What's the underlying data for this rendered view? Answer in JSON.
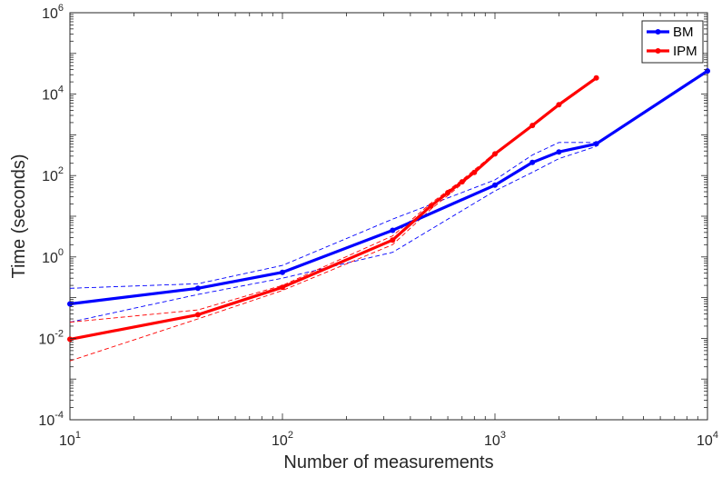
{
  "chart_data": {
    "type": "line",
    "xlabel": "Number of measurements",
    "ylabel": "Time (seconds)",
    "xscale": "log",
    "yscale": "log",
    "xlim": [
      10,
      10000
    ],
    "ylim": [
      0.0001,
      1000000
    ],
    "grid": false,
    "legend_position": "top-right",
    "x_ticks": [
      {
        "base": "10",
        "exp": "1",
        "value": 10
      },
      {
        "base": "10",
        "exp": "2",
        "value": 100
      },
      {
        "base": "10",
        "exp": "3",
        "value": 1000
      },
      {
        "base": "10",
        "exp": "4",
        "value": 10000
      }
    ],
    "y_ticks": [
      {
        "base": "10",
        "exp": "-4",
        "value": 0.0001
      },
      {
        "base": "10",
        "exp": "-2",
        "value": 0.01
      },
      {
        "base": "10",
        "exp": "0",
        "value": 1
      },
      {
        "base": "10",
        "exp": "2",
        "value": 100
      },
      {
        "base": "10",
        "exp": "4",
        "value": 10000
      },
      {
        "base": "10",
        "exp": "6",
        "value": 1000000
      }
    ],
    "series": [
      {
        "name": "BM",
        "color": "#0000ff",
        "x": [
          10,
          40,
          100,
          330,
          1000,
          1500,
          2000,
          3000,
          10000
        ],
        "y": [
          0.07,
          0.17,
          0.42,
          4.5,
          58,
          210,
          380,
          600,
          37000
        ],
        "band_upper": {
          "x": [
            10,
            40,
            100,
            330,
            1000,
            1500,
            2000,
            3000
          ],
          "y": [
            0.17,
            0.22,
            0.62,
            8.5,
            78,
            320,
            650,
            650
          ]
        },
        "band_lower": {
          "x": [
            10,
            40,
            100,
            330,
            1000,
            1500,
            2000,
            3000
          ],
          "y": [
            0.025,
            0.12,
            0.3,
            1.3,
            42,
            120,
            260,
            520
          ]
        }
      },
      {
        "name": "IPM",
        "color": "#ff0000",
        "x": [
          10,
          40,
          100,
          330,
          500,
          600,
          700,
          800,
          1000,
          1500,
          2000,
          3000
        ],
        "y": [
          0.0095,
          0.038,
          0.18,
          2.6,
          18,
          38,
          70,
          120,
          340,
          1700,
          5500,
          25000
        ],
        "band_upper": {
          "x": [
            10,
            40,
            100,
            330,
            500,
            700,
            1000
          ],
          "y": [
            0.025,
            0.05,
            0.2,
            3.3,
            21,
            78,
            360
          ]
        },
        "band_lower": {
          "x": [
            10,
            40,
            100,
            330,
            500,
            700,
            1000
          ],
          "y": [
            0.0028,
            0.03,
            0.15,
            2.0,
            15,
            62,
            320
          ]
        }
      }
    ]
  }
}
